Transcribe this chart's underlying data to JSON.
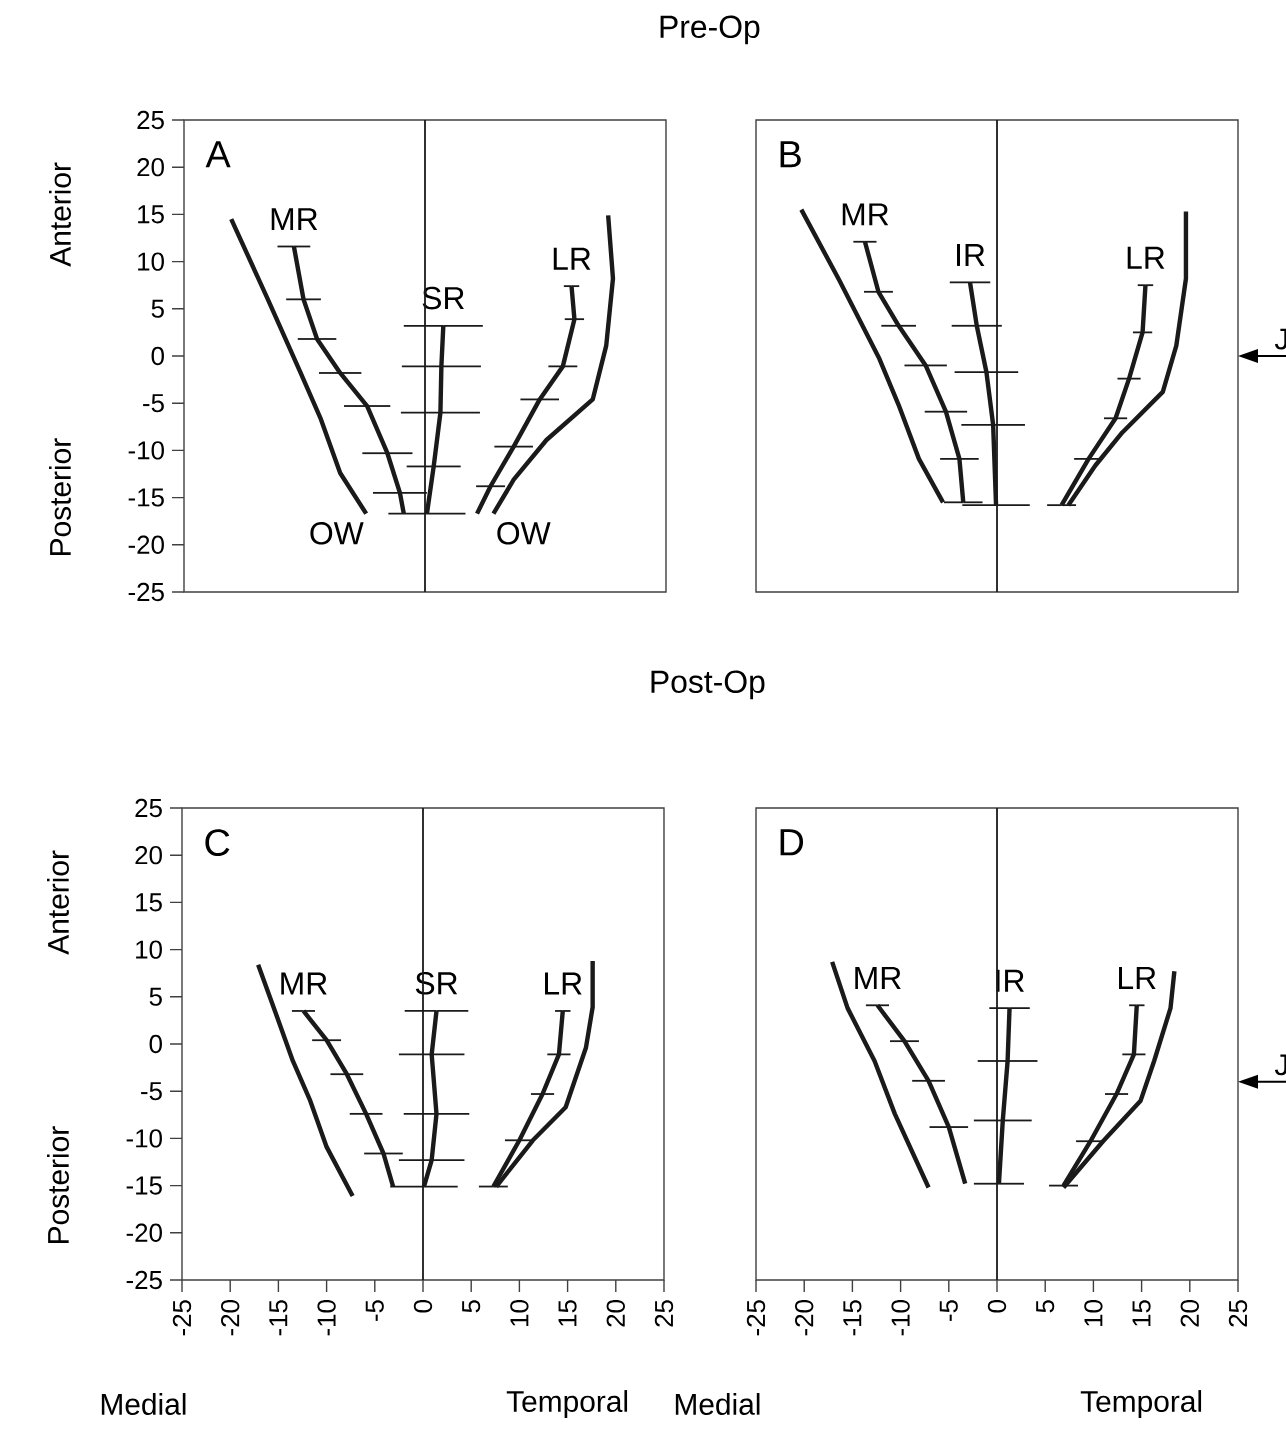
{
  "chart_data": [
    {
      "type": "line",
      "title": "Pre-Op",
      "xlim": [
        -25,
        25
      ],
      "ylim": [
        -25,
        25
      ],
      "yticks": [
        -25,
        -20,
        -15,
        -10,
        -5,
        0,
        5,
        10,
        15,
        20,
        25
      ],
      "tick_labels": "y",
      "marker": "none",
      "annotations": [
        "A",
        "Anterior",
        "Posterior"
      ],
      "ref_lines": [
        {
          "axis": "x",
          "value": 0,
          "color": "#1a1a1a"
        }
      ],
      "series": [
        {
          "name": "OW",
          "color": "#1a1a1a",
          "x": [
            -20.1,
            -16.3,
            -12.9,
            -10.8,
            -8.8,
            -6.1
          ],
          "values": [
            14.5,
            6.0,
            -1.8,
            -6.7,
            -12.4,
            -16.7
          ]
        },
        {
          "name": "MR",
          "color": "#1a1a1a",
          "x": [
            -13.6,
            -12.6,
            -11.2,
            -8.8,
            -6.0,
            -3.9,
            -2.6,
            -2.2
          ],
          "values": [
            11.6,
            6.0,
            1.8,
            -1.8,
            -5.3,
            -10.3,
            -14.5,
            -16.7
          ],
          "xerrors": [
            1.7,
            1.8,
            2.0,
            2.2,
            2.4,
            2.6,
            2.8,
            null
          ]
        },
        {
          "name": "SR",
          "color": "#1a1a1a",
          "x": [
            1.9,
            1.7,
            1.6,
            0.9,
            0.2
          ],
          "values": [
            3.2,
            -1.1,
            -6.0,
            -11.7,
            -16.7
          ],
          "xerrors": [
            4.1,
            4.1,
            4.1,
            2.8,
            4.0
          ]
        },
        {
          "name": "LR",
          "color": "#1a1a1a",
          "x": [
            15.2,
            15.5,
            14.3,
            11.9,
            9.2,
            6.8,
            5.4
          ],
          "values": [
            7.4,
            3.9,
            -1.1,
            -4.6,
            -9.6,
            -13.8,
            -16.7
          ],
          "xerrors": [
            0.8,
            1.0,
            1.5,
            2.0,
            2.0,
            1.5,
            null
          ]
        },
        {
          "name": "OW",
          "color": "#1a1a1a",
          "x": [
            19.0,
            19.5,
            18.8,
            17.4,
            12.6,
            9.2,
            7.1
          ],
          "values": [
            14.9,
            8.2,
            1.1,
            -4.6,
            -8.9,
            -13.1,
            -16.7
          ]
        }
      ]
    },
    {
      "type": "line",
      "xlim": [
        -25,
        25
      ],
      "ylim": [
        -25,
        25
      ],
      "tick_labels": false,
      "marker": "none",
      "annotations": [
        "B",
        "J"
      ],
      "ref_lines": [
        {
          "axis": "x",
          "value": 0,
          "color": "#1a1a1a"
        }
      ],
      "series": [
        {
          "color": "#1a1a1a",
          "x": [
            -20.3,
            -16.4,
            -12.2,
            -10.2,
            -8.1,
            -5.6
          ],
          "values": [
            15.5,
            8.1,
            -0.3,
            -5.2,
            -10.9,
            -15.5
          ]
        },
        {
          "name": "MR",
          "color": "#1a1a1a",
          "x": [
            -13.7,
            -12.3,
            -10.2,
            -7.4,
            -5.3,
            -3.9,
            -3.5
          ],
          "values": [
            12.1,
            6.8,
            3.2,
            -1.0,
            -5.9,
            -10.9,
            -15.5
          ],
          "xerrors": [
            1.2,
            1.5,
            1.8,
            2.2,
            2.2,
            2.0,
            2.0
          ]
        },
        {
          "name": "IR",
          "color": "#1a1a1a",
          "x": [
            -2.8,
            -2.1,
            -1.1,
            -0.4,
            -0.1
          ],
          "values": [
            7.8,
            3.2,
            -1.7,
            -7.3,
            -15.8
          ],
          "xerrors": [
            2.1,
            2.6,
            3.3,
            3.3,
            3.5
          ]
        },
        {
          "name": "LR",
          "color": "#1a1a1a",
          "x": [
            15.4,
            15.1,
            13.7,
            12.3,
            9.5,
            6.7
          ],
          "values": [
            7.5,
            2.5,
            -2.4,
            -6.6,
            -10.9,
            -15.8
          ],
          "xerrors": [
            0.8,
            1.0,
            1.2,
            1.2,
            1.5,
            1.5
          ]
        },
        {
          "color": "#1a1a1a",
          "x": [
            19.6,
            19.6,
            18.6,
            17.2,
            13.0,
            10.2,
            7.4
          ],
          "values": [
            15.3,
            8.2,
            1.1,
            -3.8,
            -8.1,
            -11.6,
            -15.8
          ]
        }
      ]
    },
    {
      "type": "line",
      "title": "Post-Op",
      "xlim": [
        -25,
        25
      ],
      "ylim": [
        -25,
        25
      ],
      "xticks": [
        -25,
        -20,
        -15,
        -10,
        -5,
        0,
        5,
        10,
        15,
        20,
        25
      ],
      "yticks": [
        -25,
        -20,
        -15,
        -10,
        -5,
        0,
        5,
        10,
        15,
        20,
        25
      ],
      "marker": "none",
      "annotations": [
        "C",
        "Anterior",
        "Posterior",
        "Medial",
        "Temporal"
      ],
      "ref_lines": [
        {
          "axis": "x",
          "value": 0,
          "color": "#1a1a1a"
        }
      ],
      "series": [
        {
          "color": "#1a1a1a",
          "x": [
            -17.1,
            -15.5,
            -13.5,
            -11.7,
            -10.0,
            -7.3
          ],
          "values": [
            8.4,
            3.9,
            -1.8,
            -6.0,
            -10.9,
            -16.1
          ]
        },
        {
          "name": "MR",
          "color": "#1a1a1a",
          "x": [
            -12.4,
            -10.0,
            -7.9,
            -5.9,
            -4.1,
            -3.1
          ],
          "values": [
            3.5,
            0.4,
            -3.2,
            -7.4,
            -11.6,
            -15.1
          ],
          "xerrors": [
            1.2,
            1.5,
            1.7,
            1.7,
            2.0,
            null
          ]
        },
        {
          "name": "SR",
          "color": "#1a1a1a",
          "x": [
            1.4,
            0.9,
            1.4,
            0.9,
            0.1
          ],
          "values": [
            3.5,
            -1.1,
            -7.4,
            -12.3,
            -15.1
          ],
          "xerrors": [
            3.3,
            3.4,
            3.4,
            3.4,
            3.5
          ]
        },
        {
          "name": "LR",
          "color": "#1a1a1a",
          "x": [
            14.5,
            14.1,
            12.4,
            10.0,
            7.3
          ],
          "values": [
            3.5,
            -1.1,
            -5.3,
            -10.2,
            -15.1
          ],
          "xerrors": [
            0.8,
            1.2,
            1.2,
            1.5,
            1.5
          ]
        },
        {
          "color": "#1a1a1a",
          "x": [
            17.6,
            17.6,
            16.9,
            14.8,
            11.4,
            7.6
          ],
          "values": [
            8.8,
            3.9,
            -0.4,
            -6.7,
            -10.2,
            -15.1
          ]
        }
      ]
    },
    {
      "type": "line",
      "xlim": [
        -25,
        25
      ],
      "ylim": [
        -25,
        25
      ],
      "xticks": [
        -25,
        -20,
        -15,
        -10,
        -5,
        0,
        5,
        10,
        15,
        20,
        25
      ],
      "tick_labels": "x",
      "marker": "none",
      "annotations": [
        "D",
        "Medial",
        "Temporal",
        "J"
      ],
      "ref_lines": [
        {
          "axis": "x",
          "value": 0,
          "color": "#1a1a1a"
        }
      ],
      "series": [
        {
          "color": "#1a1a1a",
          "x": [
            -17.1,
            -15.5,
            -12.7,
            -10.6,
            -7.1
          ],
          "values": [
            8.7,
            3.8,
            -1.8,
            -7.4,
            -15.2
          ]
        },
        {
          "name": "MR",
          "color": "#1a1a1a",
          "x": [
            -12.4,
            -9.6,
            -7.1,
            -5.0,
            -3.3
          ],
          "values": [
            4.1,
            0.3,
            -3.9,
            -8.8,
            -14.8
          ],
          "xerrors": [
            1.2,
            1.5,
            1.7,
            2.0,
            null
          ]
        },
        {
          "name": "IR",
          "color": "#1a1a1a",
          "x": [
            1.3,
            1.1,
            0.6,
            0.2
          ],
          "values": [
            3.8,
            -1.8,
            -8.1,
            -14.8
          ],
          "xerrors": [
            2.1,
            3.1,
            3.0,
            2.6
          ]
        },
        {
          "name": "LR",
          "color": "#1a1a1a",
          "x": [
            14.5,
            14.2,
            12.4,
            9.7,
            6.9
          ],
          "values": [
            4.1,
            -1.1,
            -5.3,
            -10.3,
            -15.0
          ],
          "xerrors": [
            0.8,
            1.2,
            1.2,
            1.5,
            1.5
          ]
        },
        {
          "color": "#1a1a1a",
          "x": [
            18.4,
            18.0,
            16.3,
            14.9,
            11.0,
            6.9
          ],
          "values": [
            7.7,
            3.8,
            -1.8,
            -6.0,
            -10.3,
            -15.2
          ]
        }
      ]
    }
  ]
}
